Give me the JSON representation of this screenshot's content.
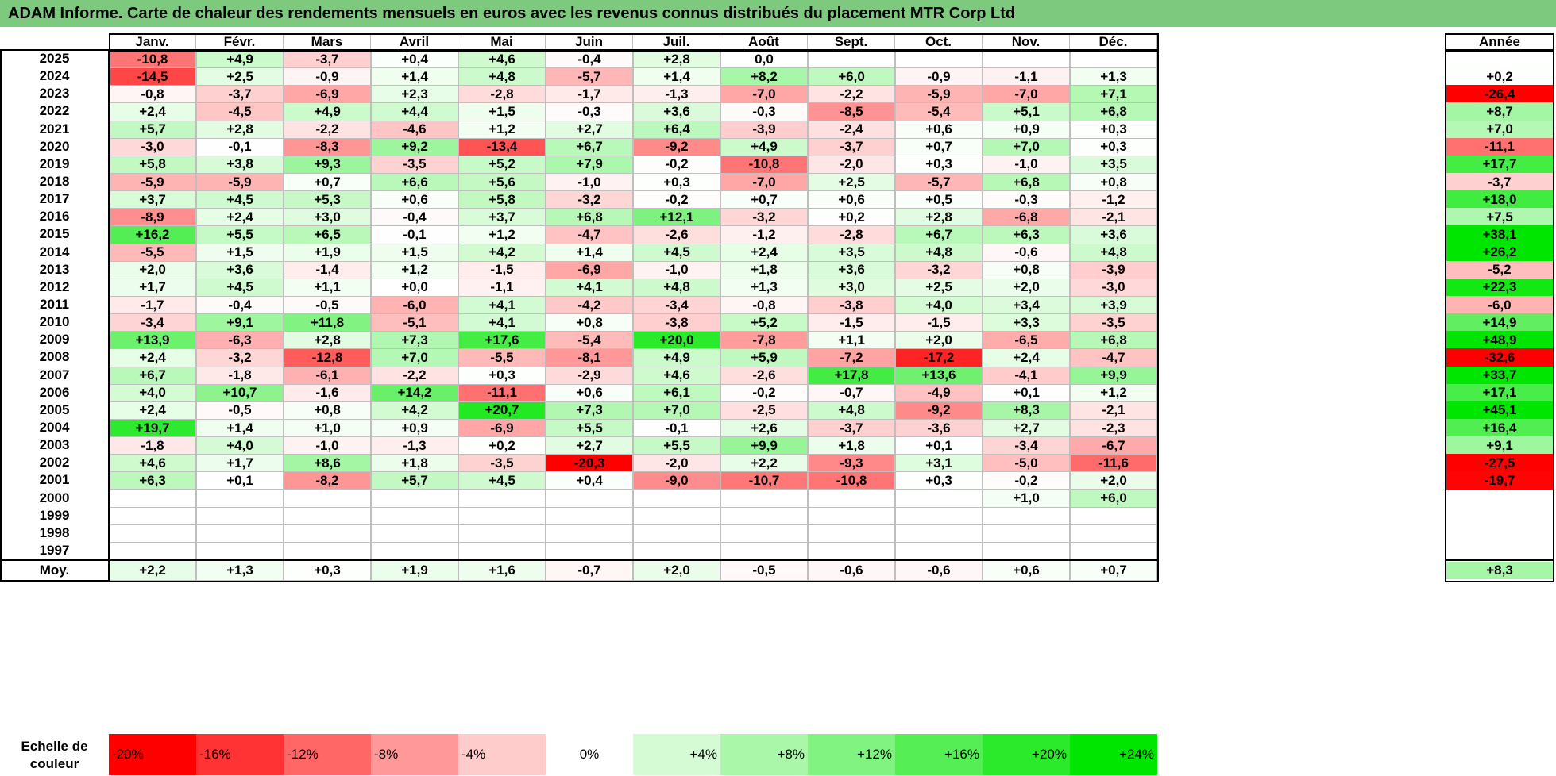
{
  "title": "ADAM Informe. Carte de chaleur des rendements mensuels en euros avec les revenus connus distribués du placement MTR Corp Ltd",
  "months": [
    "Janv.",
    "Févr.",
    "Mars",
    "Avril",
    "Mai",
    "Juin",
    "Juil.",
    "Août",
    "Sept.",
    "Oct.",
    "Nov.",
    "Déc."
  ],
  "year_header": "Année",
  "avg_label": "Moy.",
  "scale_label": "Echelle de couleur",
  "scale": [
    "-20%",
    "-16%",
    "-12%",
    "-8%",
    "-4%",
    "0%",
    "+4%",
    "+8%",
    "+12%",
    "+16%",
    "+20%",
    "+24%"
  ],
  "chart_data": {
    "type": "heatmap",
    "title": "ADAM Informe. Carte de chaleur des rendements mensuels en euros avec les revenus connus distribués du placement MTR Corp Ltd",
    "rows": [
      {
        "year": "2025",
        "values": [
          "-10,8",
          "+4,9",
          "-3,7",
          "+0,4",
          "+4,6",
          "-0,4",
          "+2,8",
          "0,0",
          "",
          "",
          "",
          ""
        ],
        "annual": ""
      },
      {
        "year": "2024",
        "values": [
          "-14,5",
          "+2,5",
          "-0,9",
          "+1,4",
          "+4,8",
          "-5,7",
          "+1,4",
          "+8,2",
          "+6,0",
          "-0,9",
          "-1,1",
          "+1,3"
        ],
        "annual": "+0,2"
      },
      {
        "year": "2023",
        "values": [
          "-0,8",
          "-3,7",
          "-6,9",
          "+2,3",
          "-2,8",
          "-1,7",
          "-1,3",
          "-7,0",
          "-2,2",
          "-5,9",
          "-7,0",
          "+7,1"
        ],
        "annual": "-26,4"
      },
      {
        "year": "2022",
        "values": [
          "+2,4",
          "-4,5",
          "+4,9",
          "+4,4",
          "+1,5",
          "-0,3",
          "+3,6",
          "-0,3",
          "-8,5",
          "-5,4",
          "+5,1",
          "+6,8"
        ],
        "annual": "+8,7"
      },
      {
        "year": "2021",
        "values": [
          "+5,7",
          "+2,8",
          "-2,2",
          "-4,6",
          "+1,2",
          "+2,7",
          "+6,4",
          "-3,9",
          "-2,4",
          "+0,6",
          "+0,9",
          "+0,3"
        ],
        "annual": "+7,0"
      },
      {
        "year": "2020",
        "values": [
          "-3,0",
          "-0,1",
          "-8,3",
          "+9,2",
          "-13,4",
          "+6,7",
          "-9,2",
          "+4,9",
          "-3,7",
          "+0,7",
          "+7,0",
          "+0,3"
        ],
        "annual": "-11,1"
      },
      {
        "year": "2019",
        "values": [
          "+5,8",
          "+3,8",
          "+9,3",
          "-3,5",
          "+5,2",
          "+7,9",
          "-0,2",
          "-10,8",
          "-2,0",
          "+0,3",
          "-1,0",
          "+3,5"
        ],
        "annual": "+17,7"
      },
      {
        "year": "2018",
        "values": [
          "-5,9",
          "-5,9",
          "+0,7",
          "+6,6",
          "+5,6",
          "-1,0",
          "+0,3",
          "-7,0",
          "+2,5",
          "-5,7",
          "+6,8",
          "+0,8"
        ],
        "annual": "-3,7"
      },
      {
        "year": "2017",
        "values": [
          "+3,7",
          "+4,5",
          "+5,3",
          "+0,6",
          "+5,8",
          "-3,2",
          "-0,2",
          "+0,7",
          "+0,6",
          "+0,5",
          "-0,3",
          "-1,2"
        ],
        "annual": "+18,0"
      },
      {
        "year": "2016",
        "values": [
          "-8,9",
          "+2,4",
          "+3,0",
          "-0,4",
          "+3,7",
          "+6,8",
          "+12,1",
          "-3,2",
          "+0,2",
          "+2,8",
          "-6,8",
          "-2,1"
        ],
        "annual": "+7,5"
      },
      {
        "year": "2015",
        "values": [
          "+16,2",
          "+5,5",
          "+6,5",
          "-0,1",
          "+1,2",
          "-4,7",
          "-2,6",
          "-1,2",
          "-2,8",
          "+6,7",
          "+6,3",
          "+3,6"
        ],
        "annual": "+38,1"
      },
      {
        "year": "2014",
        "values": [
          "-5,5",
          "+1,5",
          "+1,9",
          "+1,5",
          "+4,2",
          "+1,4",
          "+4,5",
          "+2,4",
          "+3,5",
          "+4,8",
          "-0,6",
          "+4,8"
        ],
        "annual": "+26,2"
      },
      {
        "year": "2013",
        "values": [
          "+2,0",
          "+3,6",
          "-1,4",
          "+1,2",
          "-1,5",
          "-6,9",
          "-1,0",
          "+1,8",
          "+3,6",
          "-3,2",
          "+0,8",
          "-3,9"
        ],
        "annual": "-5,2"
      },
      {
        "year": "2012",
        "values": [
          "+1,7",
          "+4,5",
          "+1,1",
          "+0,0",
          "-1,1",
          "+4,1",
          "+4,8",
          "+1,3",
          "+3,0",
          "+2,5",
          "+2,0",
          "-3,0"
        ],
        "annual": "+22,3"
      },
      {
        "year": "2011",
        "values": [
          "-1,7",
          "-0,4",
          "-0,5",
          "-6,0",
          "+4,1",
          "-4,2",
          "-3,4",
          "-0,8",
          "-3,8",
          "+4,0",
          "+3,4",
          "+3,9"
        ],
        "annual": "-6,0"
      },
      {
        "year": "2010",
        "values": [
          "-3,4",
          "+9,1",
          "+11,8",
          "-5,1",
          "+4,1",
          "+0,8",
          "-3,8",
          "+5,2",
          "-1,5",
          "-1,5",
          "+3,3",
          "-3,5"
        ],
        "annual": "+14,9"
      },
      {
        "year": "2009",
        "values": [
          "+13,9",
          "-6,3",
          "+2,8",
          "+7,3",
          "+17,6",
          "-5,4",
          "+20,0",
          "-7,8",
          "+1,1",
          "+2,0",
          "-6,5",
          "+6,8"
        ],
        "annual": "+48,9"
      },
      {
        "year": "2008",
        "values": [
          "+2,4",
          "-3,2",
          "-12,8",
          "+7,0",
          "-5,5",
          "-8,1",
          "+4,9",
          "+5,9",
          "-7,2",
          "-17,2",
          "+2,4",
          "-4,7"
        ],
        "annual": "-32,6"
      },
      {
        "year": "2007",
        "values": [
          "+6,7",
          "-1,8",
          "-6,1",
          "-2,2",
          "+0,3",
          "-2,9",
          "+4,6",
          "-2,6",
          "+17,8",
          "+13,6",
          "-4,1",
          "+9,9"
        ],
        "annual": "+33,7"
      },
      {
        "year": "2006",
        "values": [
          "+4,0",
          "+10,7",
          "-1,6",
          "+14,2",
          "-11,1",
          "+0,6",
          "+6,1",
          "-0,2",
          "-0,7",
          "-4,9",
          "+0,1",
          "+1,2"
        ],
        "annual": "+17,1"
      },
      {
        "year": "2005",
        "values": [
          "+2,4",
          "-0,5",
          "+0,8",
          "+4,2",
          "+20,7",
          "+7,3",
          "+7,0",
          "-2,5",
          "+4,8",
          "-9,2",
          "+8,3",
          "-2,1"
        ],
        "annual": "+45,1"
      },
      {
        "year": "2004",
        "values": [
          "+19,7",
          "+1,4",
          "+1,0",
          "+0,9",
          "-6,9",
          "+5,5",
          "-0,1",
          "+2,6",
          "-3,7",
          "-3,6",
          "+2,7",
          "-2,3"
        ],
        "annual": "+16,4"
      },
      {
        "year": "2003",
        "values": [
          "-1,8",
          "+4,0",
          "-1,0",
          "-1,3",
          "+0,2",
          "+2,7",
          "+5,5",
          "+9,9",
          "+1,8",
          "+0,1",
          "-3,4",
          "-6,7"
        ],
        "annual": "+9,1"
      },
      {
        "year": "2002",
        "values": [
          "+4,6",
          "+1,7",
          "+8,6",
          "+1,8",
          "-3,5",
          "-20,3",
          "-2,0",
          "+2,2",
          "-9,3",
          "+3,1",
          "-5,0",
          "-11,6"
        ],
        "annual": "-27,5"
      },
      {
        "year": "2001",
        "values": [
          "+6,3",
          "+0,1",
          "-8,2",
          "+5,7",
          "+4,5",
          "+0,4",
          "-9,0",
          "-10,7",
          "-10,8",
          "+0,3",
          "-0,2",
          "+2,0"
        ],
        "annual": "-19,7"
      },
      {
        "year": "2000",
        "values": [
          "",
          "",
          "",
          "",
          "",
          "",
          "",
          "",
          "",
          "",
          "+1,0",
          "+6,0"
        ],
        "annual": ""
      },
      {
        "year": "1999",
        "values": [
          "",
          "",
          "",
          "",
          "",
          "",
          "",
          "",
          "",
          "",
          "",
          ""
        ],
        "annual": ""
      },
      {
        "year": "1998",
        "values": [
          "",
          "",
          "",
          "",
          "",
          "",
          "",
          "",
          "",
          "",
          "",
          ""
        ],
        "annual": ""
      },
      {
        "year": "1997",
        "values": [
          "",
          "",
          "",
          "",
          "",
          "",
          "",
          "",
          "",
          "",
          "",
          ""
        ],
        "annual": ""
      }
    ],
    "averages": [
      "+2,2",
      "+1,3",
      "+0,3",
      "+1,9",
      "+1,6",
      "-0,7",
      "+2,0",
      "-0,5",
      "-0,6",
      "-0,6",
      "+0,6",
      "+0,7"
    ],
    "annual_average": "+8,3",
    "color_scale": {
      "min_color": "#ff0000",
      "zero_color": "#ffffff",
      "max_color": "#00ee00",
      "min": -20,
      "max": 24
    }
  }
}
